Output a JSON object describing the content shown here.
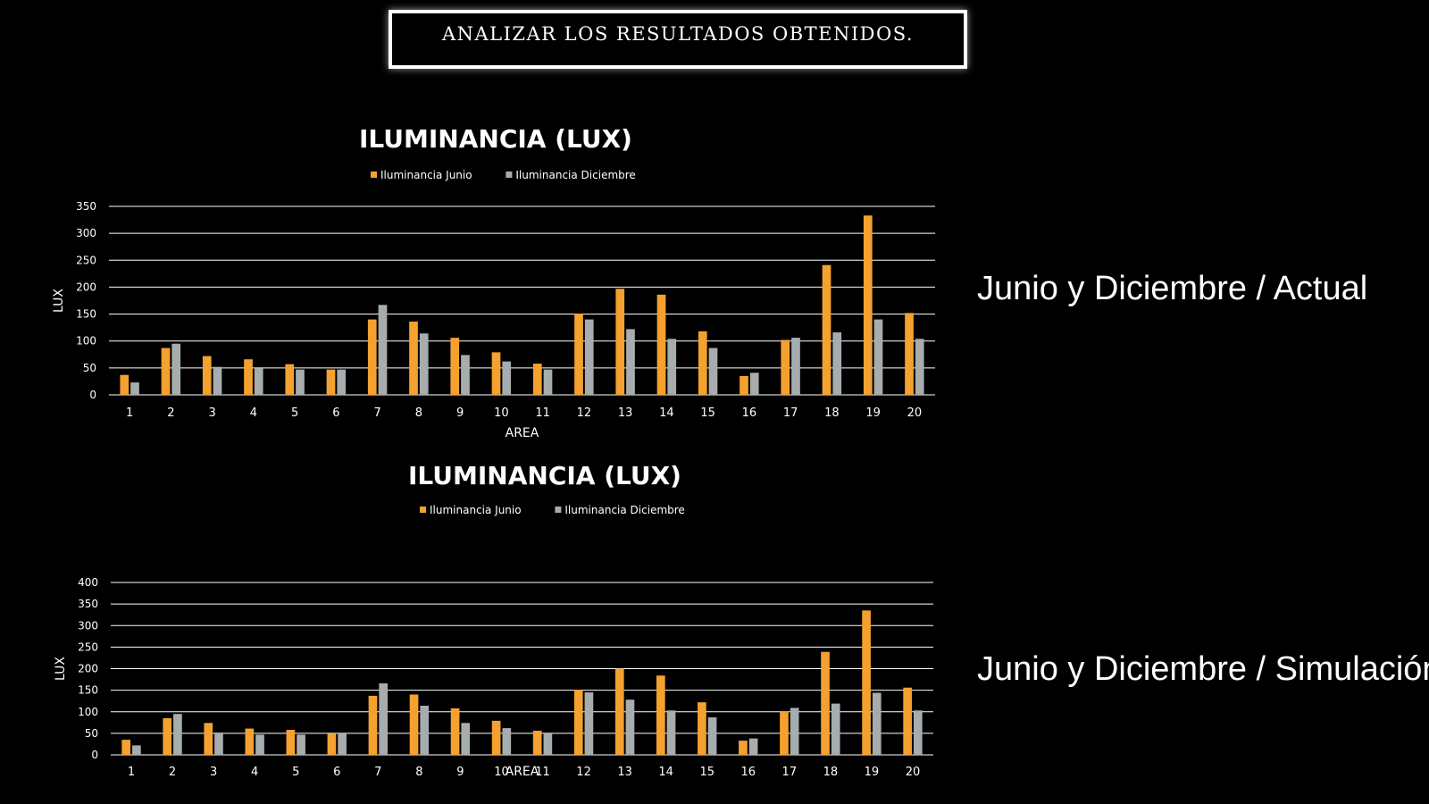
{
  "header": {
    "title": "ANALIZAR LOS RESULTADOS OBTENIDOS."
  },
  "colors": {
    "junio": "#f4a12f",
    "diciembre": "#a7acae",
    "grid": "#ffffff",
    "background": "#000000"
  },
  "side_labels": [
    "Junio y Diciembre / Actual",
    "Junio y Diciembre / Simulación"
  ],
  "chart_data": [
    {
      "type": "bar",
      "title": "ILUMINANCIA (LUX)",
      "xlabel": "AREA",
      "ylabel": "LUX",
      "ylim": [
        0,
        350
      ],
      "yticks": [
        0,
        50,
        100,
        150,
        200,
        250,
        300,
        350
      ],
      "grid": true,
      "legend_position": "top",
      "categories": [
        "1",
        "2",
        "3",
        "4",
        "5",
        "6",
        "7",
        "8",
        "9",
        "10",
        "11",
        "12",
        "13",
        "14",
        "15",
        "16",
        "17",
        "18",
        "19",
        "20"
      ],
      "series": [
        {
          "name": "Iluminancia Junio",
          "values": [
            37,
            87,
            72,
            66,
            57,
            47,
            140,
            136,
            106,
            79,
            58,
            151,
            197,
            186,
            118,
            35,
            102,
            241,
            333,
            152
          ]
        },
        {
          "name": "Iluminancia Diciembre",
          "values": [
            23,
            95,
            52,
            49,
            47,
            47,
            167,
            114,
            74,
            62,
            47,
            140,
            122,
            104,
            87,
            41,
            106,
            116,
            140,
            104
          ]
        }
      ]
    },
    {
      "type": "bar",
      "title": "ILUMINANCIA (LUX)",
      "xlabel": "AREA",
      "ylabel": "LUX",
      "ylim": [
        0,
        400
      ],
      "yticks": [
        0,
        50,
        100,
        150,
        200,
        250,
        300,
        350,
        400
      ],
      "grid": true,
      "legend_position": "top",
      "categories": [
        "1",
        "2",
        "3",
        "4",
        "5",
        "6",
        "7",
        "8",
        "9",
        "10",
        "11",
        "12",
        "13",
        "14",
        "15",
        "16",
        "17",
        "18",
        "19",
        "20"
      ],
      "series": [
        {
          "name": "Iluminancia Junio",
          "values": [
            35,
            85,
            74,
            61,
            58,
            49,
            137,
            140,
            108,
            79,
            56,
            151,
            200,
            184,
            122,
            33,
            100,
            239,
            335,
            156
          ]
        },
        {
          "name": "Iluminancia Diciembre",
          "values": [
            22,
            95,
            52,
            47,
            47,
            49,
            166,
            114,
            74,
            62,
            49,
            145,
            128,
            103,
            87,
            38,
            109,
            119,
            144,
            103
          ]
        }
      ]
    }
  ]
}
